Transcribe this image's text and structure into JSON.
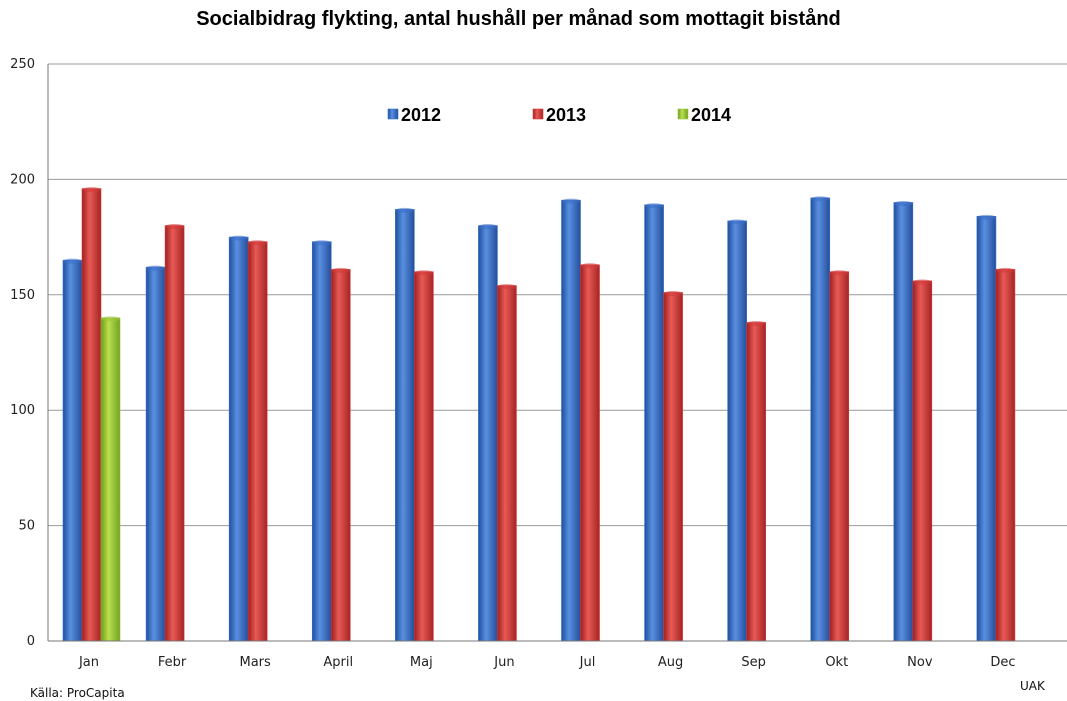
{
  "chart_data": {
    "type": "bar",
    "title": "Socialbidrag flykting, antal hushåll per månad som mottagit bistånd",
    "xlabel": "",
    "ylabel": "",
    "ylim": [
      0,
      250
    ],
    "yticks": [
      0,
      50,
      100,
      150,
      200,
      250
    ],
    "grid": true,
    "legend_position": "top-center",
    "categories": [
      "Jan",
      "Febr",
      "Mars",
      "April",
      "Maj",
      "Jun",
      "Jul",
      "Aug",
      "Sep",
      "Okt",
      "Nov",
      "Dec"
    ],
    "series": [
      {
        "name": "2012",
        "color": "#3b6fc9",
        "values": [
          165,
          162,
          175,
          173,
          187,
          180,
          191,
          189,
          182,
          192,
          190,
          184
        ]
      },
      {
        "name": "2013",
        "color": "#d23b3b",
        "values": [
          196,
          180,
          173,
          161,
          160,
          154,
          163,
          151,
          138,
          160,
          156,
          161
        ]
      },
      {
        "name": "2014",
        "color": "#9bc53d",
        "values": [
          140,
          null,
          null,
          null,
          null,
          null,
          null,
          null,
          null,
          null,
          null,
          null
        ]
      }
    ]
  },
  "notes": {
    "source": "Källa: ProCapita",
    "credit": "UAK"
  }
}
